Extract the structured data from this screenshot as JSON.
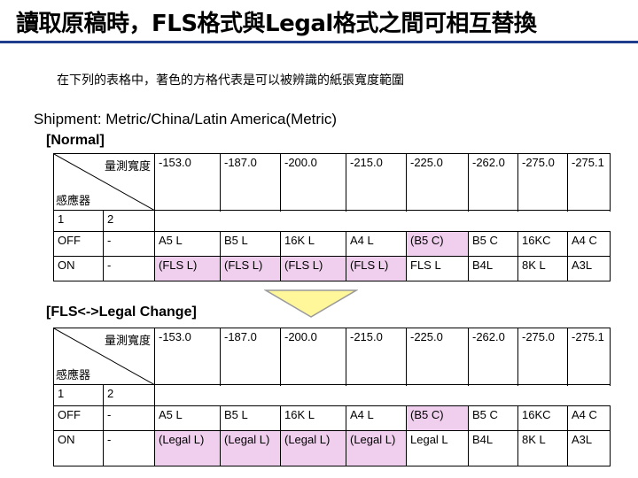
{
  "title": "讀取原稿時，FLS格式與Legal格式之間可相互替換",
  "subtitle": "在下列的表格中，著色的方格代表是可以被辨識的紙張寬度範圍",
  "shipment": "Shipment: Metric/China/Latin America(Metric)",
  "normal_label": "[Normal]",
  "change_label": "[FLS<->Legal Change]",
  "colors": {
    "highlight": "#f0cfee",
    "title_rule": "#1f3b8c",
    "arrow_fill": "#fff799"
  },
  "icons": {
    "arrow": "down-arrow-icon"
  },
  "tables": {
    "normal": {
      "corner_top": "量測寬度",
      "corner_bottom": "感應器",
      "widths": [
        "-153.0",
        "-187.0",
        "-200.0",
        "-215.0",
        "-225.0",
        "-262.0",
        "-275.0",
        "-275.1"
      ],
      "sensor_row": [
        "1",
        "2"
      ],
      "rows": [
        {
          "s1": "OFF",
          "s2": "-",
          "cells": [
            "A5 L",
            "B5 L",
            "16K L",
            "A4 L",
            "(B5 C)",
            "B5 C",
            "16KC",
            "A4 C"
          ]
        },
        {
          "s1": "ON",
          "s2": "-",
          "cells": [
            "(FLS L)",
            "(FLS L)",
            "(FLS L)",
            "(FLS L)",
            "FLS L",
            "B4L",
            "8K L",
            "A3L"
          ]
        }
      ]
    },
    "change": {
      "corner_top": "量測寬度",
      "corner_bottom": "感應器",
      "widths": [
        "-153.0",
        "-187.0",
        "-200.0",
        "-215.0",
        "-225.0",
        "-262.0",
        "-275.0",
        "-275.1"
      ],
      "sensor_row": [
        "1",
        "2"
      ],
      "rows": [
        {
          "s1": "OFF",
          "s2": "-",
          "cells": [
            "A5 L",
            "B5 L",
            "16K L",
            "A4 L",
            "(B5 C)",
            "B5 C",
            "16KC",
            "A4 C"
          ]
        },
        {
          "s1": "ON",
          "s2": "-",
          "cells": [
            "(Legal L)",
            "(Legal L)",
            "(Legal L)",
            "(Legal L)",
            "Legal L",
            "B4L",
            "8K L",
            "A3L"
          ]
        }
      ]
    }
  }
}
